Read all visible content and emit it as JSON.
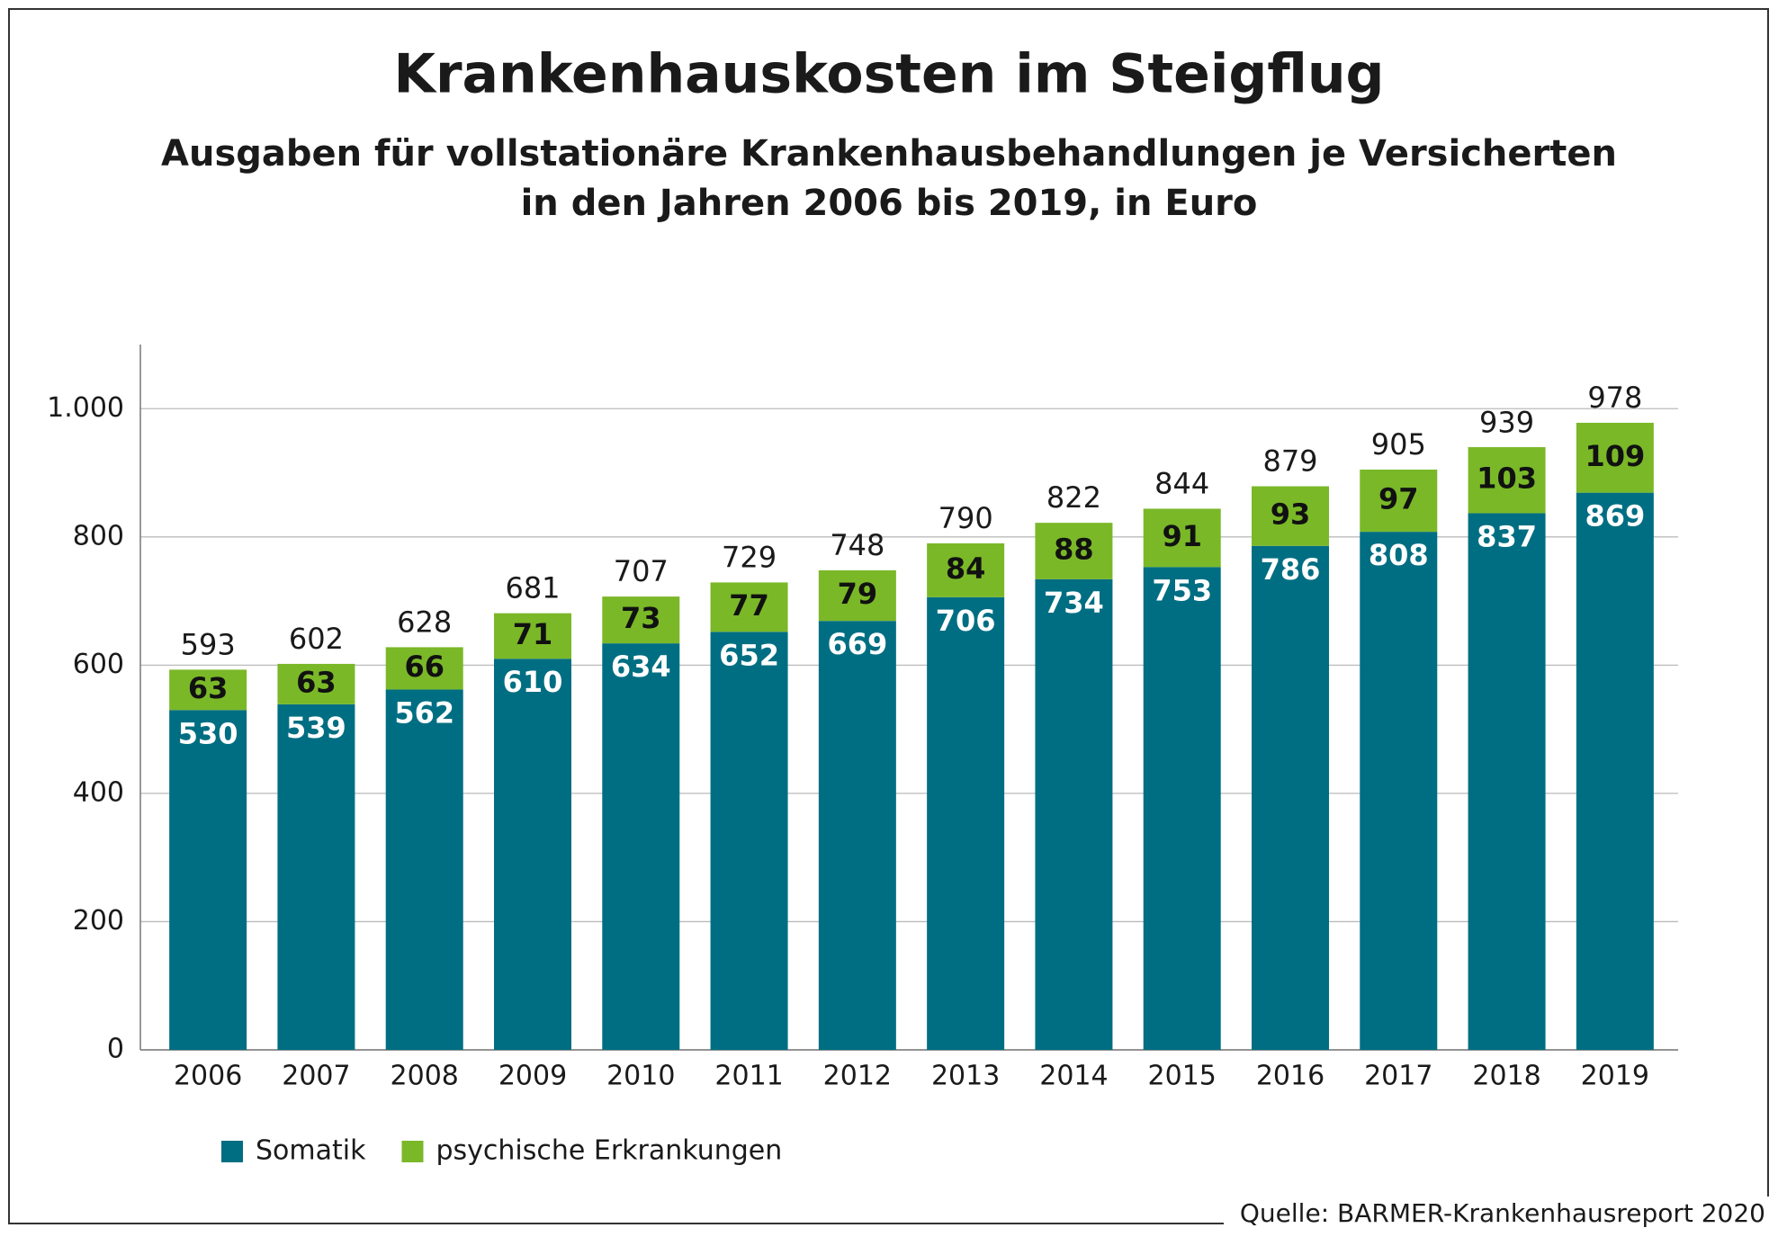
{
  "chart_data": {
    "type": "stacked-bar",
    "title": "Krankenhauskosten im Steigflug",
    "subtitle": [
      "Ausgaben für vollstationäre Krankenhausbehandlungen je Versicherten",
      "in den Jahren 2006 bis 2019, in Euro"
    ],
    "categories": [
      "2006",
      "2007",
      "2008",
      "2009",
      "2010",
      "2011",
      "2012",
      "2013",
      "2014",
      "2015",
      "2016",
      "2017",
      "2018",
      "2019"
    ],
    "series": [
      {
        "name": "Somatik",
        "color": "#006e82",
        "label_color": "#ffffff",
        "values": [
          530,
          539,
          562,
          610,
          634,
          652,
          669,
          706,
          734,
          753,
          786,
          808,
          837,
          869
        ]
      },
      {
        "name": "psychische Erkrankungen",
        "color": "#7ab828",
        "label_color": "#111111",
        "values": [
          63,
          63,
          66,
          71,
          73,
          77,
          79,
          84,
          88,
          91,
          93,
          97,
          103,
          109
        ]
      }
    ],
    "totals": [
      593,
      602,
      628,
      681,
      707,
      729,
      748,
      790,
      822,
      844,
      879,
      905,
      939,
      978
    ],
    "ylim": [
      0,
      1100
    ],
    "yticks": [
      0,
      200,
      400,
      600,
      800,
      {
        "value": 1000,
        "label": "1.000"
      }
    ],
    "grid": true,
    "legend": "bottom-left",
    "source": "Quelle: BARMER-Krankenhausreport 2020"
  }
}
